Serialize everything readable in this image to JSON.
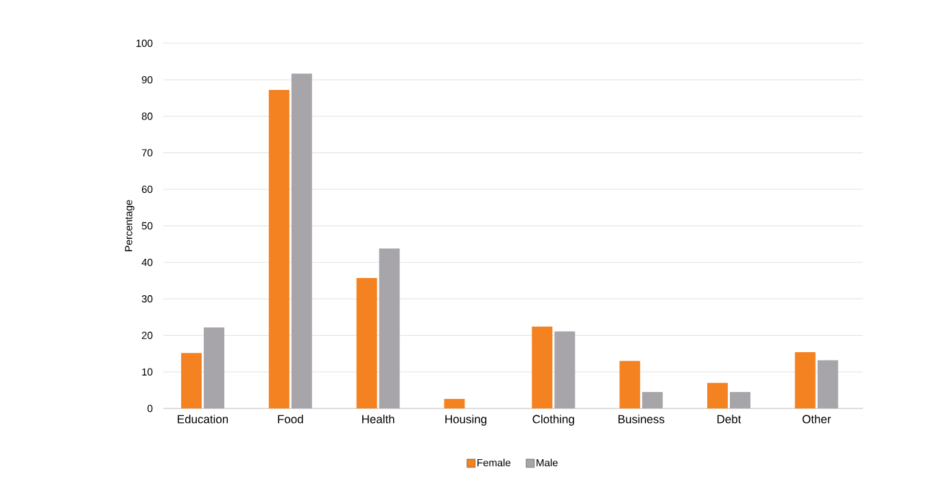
{
  "chart_data": {
    "type": "bar",
    "ylabel": "Percentage",
    "categories": [
      "Education",
      "Food",
      "Health",
      "Housing",
      "Clothing",
      "Business",
      "Debt",
      "Other"
    ],
    "series": [
      {
        "name": "Female",
        "color": "#f58220",
        "values": [
          15.2,
          87.2,
          35.7,
          2.6,
          22.4,
          13.0,
          7.0,
          15.4
        ]
      },
      {
        "name": "Male",
        "color": "#a7a5a9",
        "values": [
          22.2,
          91.7,
          43.8,
          0,
          21.1,
          4.5,
          4.5,
          13.2
        ]
      }
    ],
    "ylim": [
      0,
      100
    ],
    "yticks": [
      0,
      10,
      20,
      30,
      40,
      50,
      60,
      70,
      80,
      90,
      100
    ],
    "grid": "y",
    "legend": "bottom"
  }
}
